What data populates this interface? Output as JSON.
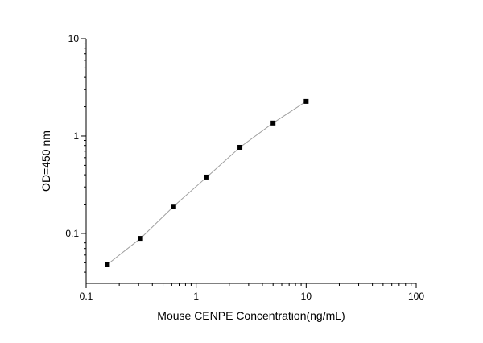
{
  "chart_data": {
    "type": "line",
    "title": "",
    "xlabel": "Mouse CENPE Concentration(ng/mL)",
    "ylabel": "OD=450 nm",
    "xscale": "log",
    "yscale": "log",
    "xlim": [
      0.1,
      100
    ],
    "ylim": [
      0.0307,
      10
    ],
    "x_ticks": [
      0.1,
      1,
      10,
      100
    ],
    "x_tick_labels": [
      "0.1",
      "1",
      "10",
      "100"
    ],
    "y_ticks": [
      0.1,
      1,
      10
    ],
    "y_tick_labels": [
      "0.1",
      "1",
      "10"
    ],
    "grid": false,
    "legend": "none",
    "series": [
      {
        "x": [
          0.156,
          0.3125,
          0.625,
          1.25,
          2.5,
          5,
          10
        ],
        "y": [
          0.048,
          0.089,
          0.19,
          0.379,
          0.766,
          1.36,
          2.27
        ],
        "marker": "square",
        "marker_color": "#000000",
        "line_color": "#a0a0a0"
      }
    ]
  }
}
